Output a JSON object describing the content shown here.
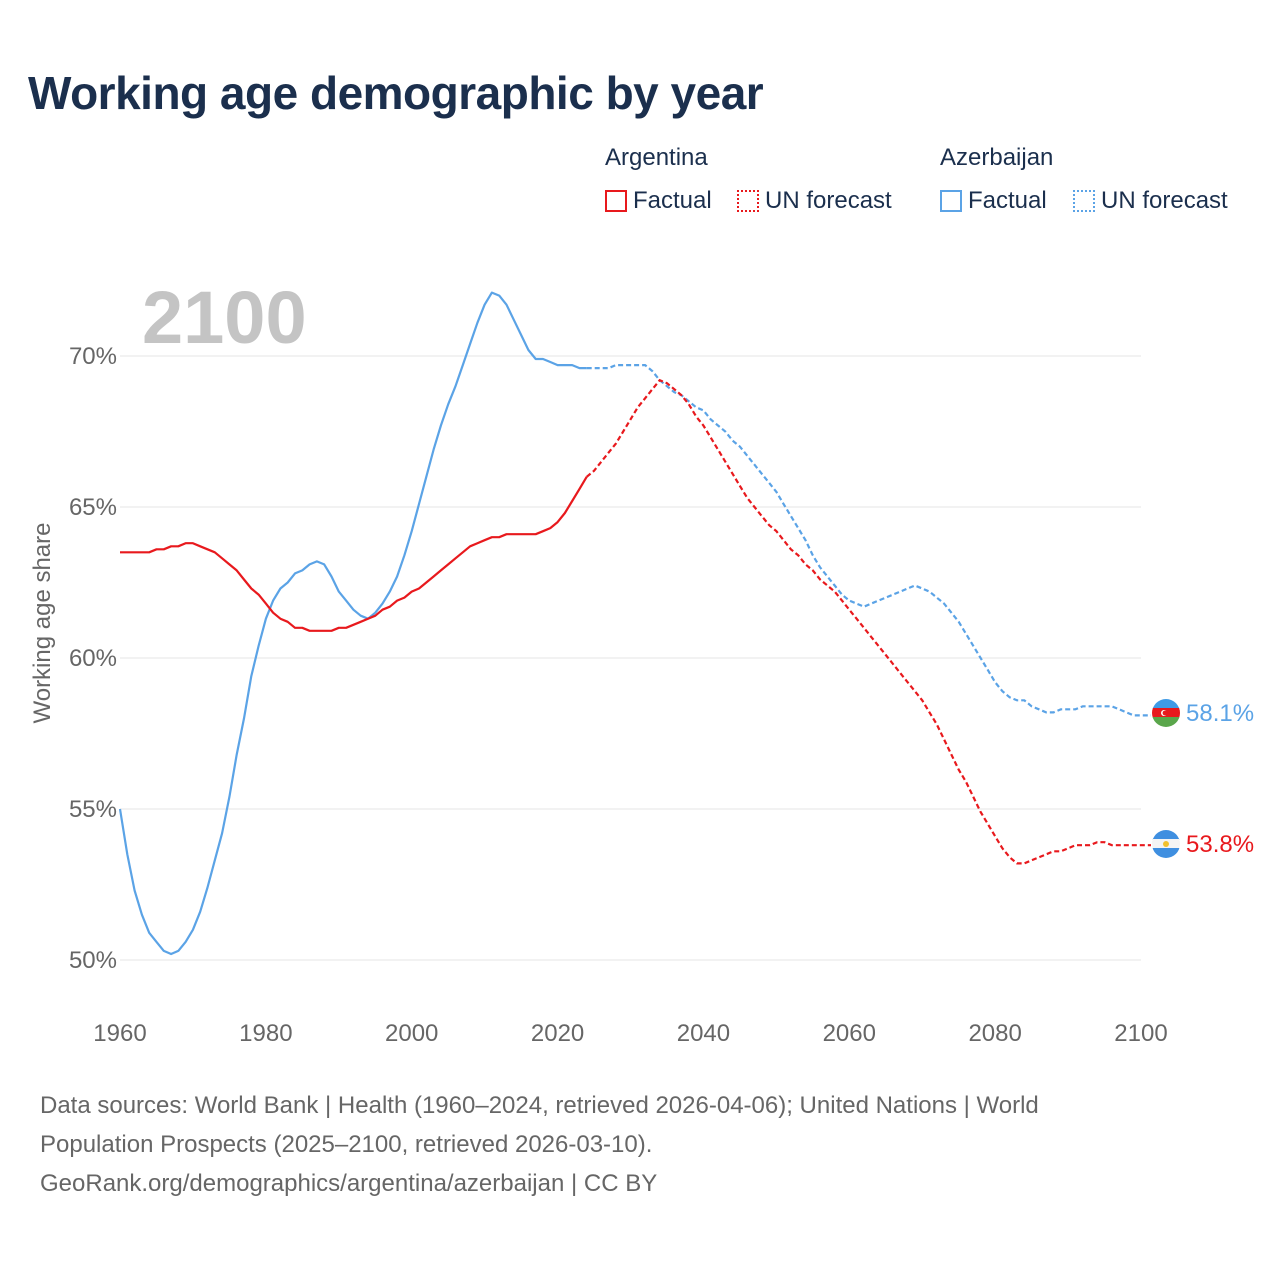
{
  "title": "Working age demographic by year",
  "legend": {
    "groups": [
      {
        "name": "Argentina",
        "factual_label": "Factual",
        "forecast_label": "UN forecast",
        "color": "#e8191d"
      },
      {
        "name": "Azerbaijan",
        "factual_label": "Factual",
        "forecast_label": "UN forecast",
        "color": "#5ba3e6"
      }
    ]
  },
  "footer": {
    "line1": "Data sources: World Bank | Health (1960–2024, retrieved 2026-04-06); United Nations | World",
    "line2": "Population Prospects (2025–2100, retrieved 2026-03-10).",
    "line3": "GeoRank.org/demographics/argentina/azerbaijan | CC BY"
  },
  "chart_data": {
    "type": "line",
    "title": "Working age demographic by year",
    "year_watermark": "2100",
    "xlabel": "",
    "ylabel": "Working age share",
    "xlim": [
      1960,
      2100
    ],
    "ylim": [
      49.5,
      72
    ],
    "x_ticks": [
      1960,
      1980,
      2000,
      2020,
      2040,
      2060,
      2080,
      2100
    ],
    "y_ticks": [
      50,
      55,
      60,
      65,
      70
    ],
    "y_tick_labels": [
      "50%",
      "55%",
      "60%",
      "65%",
      "70%"
    ],
    "factual_end_year": 2024,
    "series": [
      {
        "name": "Azerbaijan",
        "color": "#5ba3e6",
        "end_label": "58.1%",
        "points": [
          [
            1960,
            55.0
          ],
          [
            1961,
            53.5
          ],
          [
            1962,
            52.3
          ],
          [
            1963,
            51.5
          ],
          [
            1964,
            50.9
          ],
          [
            1965,
            50.6
          ],
          [
            1966,
            50.3
          ],
          [
            1967,
            50.2
          ],
          [
            1968,
            50.3
          ],
          [
            1969,
            50.6
          ],
          [
            1970,
            51.0
          ],
          [
            1971,
            51.6
          ],
          [
            1972,
            52.4
          ],
          [
            1973,
            53.3
          ],
          [
            1974,
            54.2
          ],
          [
            1975,
            55.4
          ],
          [
            1976,
            56.8
          ],
          [
            1977,
            58.0
          ],
          [
            1978,
            59.4
          ],
          [
            1979,
            60.4
          ],
          [
            1980,
            61.3
          ],
          [
            1981,
            61.9
          ],
          [
            1982,
            62.3
          ],
          [
            1983,
            62.5
          ],
          [
            1984,
            62.8
          ],
          [
            1985,
            62.9
          ],
          [
            1986,
            63.1
          ],
          [
            1987,
            63.2
          ],
          [
            1988,
            63.1
          ],
          [
            1989,
            62.7
          ],
          [
            1990,
            62.2
          ],
          [
            1991,
            61.9
          ],
          [
            1992,
            61.6
          ],
          [
            1993,
            61.4
          ],
          [
            1994,
            61.3
          ],
          [
            1995,
            61.5
          ],
          [
            1996,
            61.8
          ],
          [
            1997,
            62.2
          ],
          [
            1998,
            62.7
          ],
          [
            1999,
            63.4
          ],
          [
            2000,
            64.2
          ],
          [
            2001,
            65.1
          ],
          [
            2002,
            66.0
          ],
          [
            2003,
            66.9
          ],
          [
            2004,
            67.7
          ],
          [
            2005,
            68.4
          ],
          [
            2006,
            69.0
          ],
          [
            2007,
            69.7
          ],
          [
            2008,
            70.4
          ],
          [
            2009,
            71.1
          ],
          [
            2010,
            71.7
          ],
          [
            2011,
            72.1
          ],
          [
            2012,
            72.0
          ],
          [
            2013,
            71.7
          ],
          [
            2014,
            71.2
          ],
          [
            2015,
            70.7
          ],
          [
            2016,
            70.2
          ],
          [
            2017,
            69.9
          ],
          [
            2018,
            69.9
          ],
          [
            2019,
            69.8
          ],
          [
            2020,
            69.7
          ],
          [
            2021,
            69.7
          ],
          [
            2022,
            69.7
          ],
          [
            2023,
            69.6
          ],
          [
            2024,
            69.6
          ],
          [
            2025,
            69.6
          ],
          [
            2026,
            69.6
          ],
          [
            2027,
            69.6
          ],
          [
            2028,
            69.7
          ],
          [
            2029,
            69.7
          ],
          [
            2030,
            69.7
          ],
          [
            2031,
            69.7
          ],
          [
            2032,
            69.7
          ],
          [
            2033,
            69.5
          ],
          [
            2034,
            69.2
          ],
          [
            2035,
            69.0
          ],
          [
            2036,
            68.8
          ],
          [
            2037,
            68.7
          ],
          [
            2038,
            68.5
          ],
          [
            2039,
            68.3
          ],
          [
            2040,
            68.2
          ],
          [
            2041,
            67.9
          ],
          [
            2042,
            67.7
          ],
          [
            2043,
            67.5
          ],
          [
            2044,
            67.2
          ],
          [
            2045,
            67.0
          ],
          [
            2046,
            66.7
          ],
          [
            2047,
            66.4
          ],
          [
            2048,
            66.1
          ],
          [
            2049,
            65.8
          ],
          [
            2050,
            65.5
          ],
          [
            2051,
            65.1
          ],
          [
            2052,
            64.7
          ],
          [
            2053,
            64.3
          ],
          [
            2054,
            63.9
          ],
          [
            2055,
            63.4
          ],
          [
            2056,
            63.0
          ],
          [
            2057,
            62.7
          ],
          [
            2058,
            62.4
          ],
          [
            2059,
            62.1
          ],
          [
            2060,
            61.9
          ],
          [
            2061,
            61.8
          ],
          [
            2062,
            61.7
          ],
          [
            2063,
            61.8
          ],
          [
            2064,
            61.9
          ],
          [
            2065,
            62.0
          ],
          [
            2066,
            62.1
          ],
          [
            2067,
            62.2
          ],
          [
            2068,
            62.3
          ],
          [
            2069,
            62.4
          ],
          [
            2070,
            62.3
          ],
          [
            2071,
            62.2
          ],
          [
            2072,
            62.0
          ],
          [
            2073,
            61.8
          ],
          [
            2074,
            61.5
          ],
          [
            2075,
            61.2
          ],
          [
            2076,
            60.8
          ],
          [
            2077,
            60.4
          ],
          [
            2078,
            60.0
          ],
          [
            2079,
            59.6
          ],
          [
            2080,
            59.2
          ],
          [
            2081,
            58.9
          ],
          [
            2082,
            58.7
          ],
          [
            2083,
            58.6
          ],
          [
            2084,
            58.6
          ],
          [
            2085,
            58.4
          ],
          [
            2086,
            58.3
          ],
          [
            2087,
            58.2
          ],
          [
            2088,
            58.2
          ],
          [
            2089,
            58.3
          ],
          [
            2090,
            58.3
          ],
          [
            2091,
            58.3
          ],
          [
            2092,
            58.4
          ],
          [
            2093,
            58.4
          ],
          [
            2094,
            58.4
          ],
          [
            2095,
            58.4
          ],
          [
            2096,
            58.4
          ],
          [
            2097,
            58.3
          ],
          [
            2098,
            58.2
          ],
          [
            2099,
            58.1
          ],
          [
            2100,
            58.1
          ]
        ]
      },
      {
        "name": "Argentina",
        "color": "#e8191d",
        "end_label": "53.8%",
        "points": [
          [
            1960,
            63.5
          ],
          [
            1961,
            63.5
          ],
          [
            1962,
            63.5
          ],
          [
            1963,
            63.5
          ],
          [
            1964,
            63.5
          ],
          [
            1965,
            63.6
          ],
          [
            1966,
            63.6
          ],
          [
            1967,
            63.7
          ],
          [
            1968,
            63.7
          ],
          [
            1969,
            63.8
          ],
          [
            1970,
            63.8
          ],
          [
            1971,
            63.7
          ],
          [
            1972,
            63.6
          ],
          [
            1973,
            63.5
          ],
          [
            1974,
            63.3
          ],
          [
            1975,
            63.1
          ],
          [
            1976,
            62.9
          ],
          [
            1977,
            62.6
          ],
          [
            1978,
            62.3
          ],
          [
            1979,
            62.1
          ],
          [
            1980,
            61.8
          ],
          [
            1981,
            61.5
          ],
          [
            1982,
            61.3
          ],
          [
            1983,
            61.2
          ],
          [
            1984,
            61.0
          ],
          [
            1985,
            61.0
          ],
          [
            1986,
            60.9
          ],
          [
            1987,
            60.9
          ],
          [
            1988,
            60.9
          ],
          [
            1989,
            60.9
          ],
          [
            1990,
            61.0
          ],
          [
            1991,
            61.0
          ],
          [
            1992,
            61.1
          ],
          [
            1993,
            61.2
          ],
          [
            1994,
            61.3
          ],
          [
            1995,
            61.4
          ],
          [
            1996,
            61.6
          ],
          [
            1997,
            61.7
          ],
          [
            1998,
            61.9
          ],
          [
            1999,
            62.0
          ],
          [
            2000,
            62.2
          ],
          [
            2001,
            62.3
          ],
          [
            2002,
            62.5
          ],
          [
            2003,
            62.7
          ],
          [
            2004,
            62.9
          ],
          [
            2005,
            63.1
          ],
          [
            2006,
            63.3
          ],
          [
            2007,
            63.5
          ],
          [
            2008,
            63.7
          ],
          [
            2009,
            63.8
          ],
          [
            2010,
            63.9
          ],
          [
            2011,
            64.0
          ],
          [
            2012,
            64.0
          ],
          [
            2013,
            64.1
          ],
          [
            2014,
            64.1
          ],
          [
            2015,
            64.1
          ],
          [
            2016,
            64.1
          ],
          [
            2017,
            64.1
          ],
          [
            2018,
            64.2
          ],
          [
            2019,
            64.3
          ],
          [
            2020,
            64.5
          ],
          [
            2021,
            64.8
          ],
          [
            2022,
            65.2
          ],
          [
            2023,
            65.6
          ],
          [
            2024,
            66.0
          ],
          [
            2025,
            66.2
          ],
          [
            2026,
            66.5
          ],
          [
            2027,
            66.8
          ],
          [
            2028,
            67.1
          ],
          [
            2029,
            67.5
          ],
          [
            2030,
            67.9
          ],
          [
            2031,
            68.3
          ],
          [
            2032,
            68.6
          ],
          [
            2033,
            68.9
          ],
          [
            2034,
            69.2
          ],
          [
            2035,
            69.1
          ],
          [
            2036,
            68.9
          ],
          [
            2037,
            68.7
          ],
          [
            2038,
            68.4
          ],
          [
            2039,
            68.0
          ],
          [
            2040,
            67.7
          ],
          [
            2041,
            67.3
          ],
          [
            2042,
            66.9
          ],
          [
            2043,
            66.5
          ],
          [
            2044,
            66.1
          ],
          [
            2045,
            65.7
          ],
          [
            2046,
            65.3
          ],
          [
            2047,
            65.0
          ],
          [
            2048,
            64.7
          ],
          [
            2049,
            64.4
          ],
          [
            2050,
            64.2
          ],
          [
            2051,
            63.9
          ],
          [
            2052,
            63.6
          ],
          [
            2053,
            63.4
          ],
          [
            2054,
            63.1
          ],
          [
            2055,
            62.9
          ],
          [
            2056,
            62.6
          ],
          [
            2057,
            62.4
          ],
          [
            2058,
            62.2
          ],
          [
            2059,
            61.9
          ],
          [
            2060,
            61.6
          ],
          [
            2061,
            61.3
          ],
          [
            2062,
            61.0
          ],
          [
            2063,
            60.7
          ],
          [
            2064,
            60.4
          ],
          [
            2065,
            60.1
          ],
          [
            2066,
            59.8
          ],
          [
            2067,
            59.5
          ],
          [
            2068,
            59.2
          ],
          [
            2069,
            58.9
          ],
          [
            2070,
            58.6
          ],
          [
            2071,
            58.2
          ],
          [
            2072,
            57.8
          ],
          [
            2073,
            57.3
          ],
          [
            2074,
            56.8
          ],
          [
            2075,
            56.3
          ],
          [
            2076,
            55.9
          ],
          [
            2077,
            55.4
          ],
          [
            2078,
            54.9
          ],
          [
            2079,
            54.5
          ],
          [
            2080,
            54.1
          ],
          [
            2081,
            53.7
          ],
          [
            2082,
            53.4
          ],
          [
            2083,
            53.2
          ],
          [
            2084,
            53.2
          ],
          [
            2085,
            53.3
          ],
          [
            2086,
            53.4
          ],
          [
            2087,
            53.5
          ],
          [
            2088,
            53.6
          ],
          [
            2089,
            53.6
          ],
          [
            2090,
            53.7
          ],
          [
            2091,
            53.8
          ],
          [
            2092,
            53.8
          ],
          [
            2093,
            53.8
          ],
          [
            2094,
            53.9
          ],
          [
            2095,
            53.9
          ],
          [
            2096,
            53.8
          ],
          [
            2097,
            53.8
          ],
          [
            2098,
            53.8
          ],
          [
            2099,
            53.8
          ],
          [
            2100,
            53.8
          ]
        ]
      }
    ]
  }
}
